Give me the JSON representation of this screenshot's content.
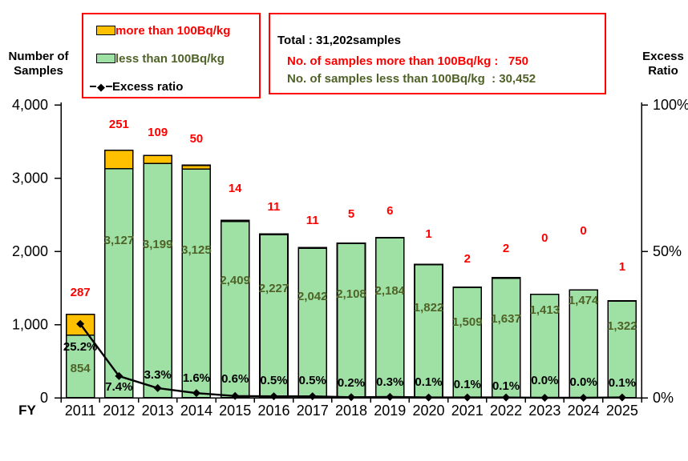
{
  "left_axis_title": {
    "line1": "Number of",
    "line2": "Samples"
  },
  "right_axis_title": {
    "line1": "Excess",
    "line2": "Ratio"
  },
  "fy_label": "FY",
  "legend": {
    "items": [
      {
        "label": "more than 100Bq/kg",
        "marker": "box",
        "swatch_color": "#FFC000",
        "text_color": "#FF0000"
      },
      {
        "label": "less than 100Bq/kg",
        "marker": "box",
        "swatch_color": "#9FE0A4",
        "text_color": "#4F6228"
      },
      {
        "label": "Excess ratio",
        "marker": "line-diamond",
        "text_color": "#000000"
      }
    ]
  },
  "summary_box": {
    "line1": "Total : 31,202samples",
    "line2": "No. of samples more than 100Bq/kg :   750",
    "line3": "No. of samples less than 100Bq/kg  : 30,452"
  },
  "colors": {
    "bar_more": "#FFC000",
    "bar_less": "#9FE0A4",
    "bar_border": "#000000",
    "line": "#000000",
    "label_more": "#FF0000",
    "label_less": "#4F6228",
    "label_ratio": "#000000",
    "box_border": "#FF0000",
    "axis": "#000000"
  },
  "chart_data": {
    "type": "combo: stacked bar + line",
    "title": "",
    "categories": [
      "2011",
      "2012",
      "2013",
      "2014",
      "2015",
      "2016",
      "2017",
      "2018",
      "2019",
      "2020",
      "2021",
      "2022",
      "2023",
      "2024",
      "2025"
    ],
    "series": [
      {
        "name": "more than 100Bq/kg",
        "type": "bar",
        "stacked": true,
        "color": "#FFC000",
        "axis": "left",
        "values": [
          287,
          251,
          109,
          50,
          14,
          11,
          11,
          5,
          6,
          1,
          2,
          2,
          0,
          0,
          1
        ],
        "labels": [
          "287",
          "251",
          "109",
          "50",
          "14",
          "11",
          "11",
          "5",
          "6",
          "1",
          "2",
          "2",
          "0",
          "0",
          "1"
        ]
      },
      {
        "name": "less than 100Bq/kg",
        "type": "bar",
        "stacked": true,
        "color": "#9FE0A4",
        "axis": "left",
        "values": [
          854,
          3127,
          3199,
          3125,
          2409,
          2227,
          2042,
          2108,
          2184,
          1822,
          1509,
          1637,
          1413,
          1474,
          1322
        ],
        "labels": [
          "854",
          "3,127",
          "3,199",
          "3,125",
          "2,409",
          "2,227",
          "2,042",
          "2,108",
          "2,184",
          "1,822",
          "1,509",
          "1,637",
          "1,413",
          "1,474",
          "1,322"
        ]
      },
      {
        "name": "Excess ratio",
        "type": "line",
        "color": "#000000",
        "axis": "right",
        "marker": "diamond",
        "values": [
          25.2,
          7.4,
          3.3,
          1.6,
          0.6,
          0.5,
          0.5,
          0.2,
          0.3,
          0.1,
          0.1,
          0.1,
          0.0,
          0.0,
          0.1
        ],
        "labels": [
          "25.2%",
          "7.4%",
          "3.3%",
          "1.6%",
          "0.6%",
          "0.5%",
          "0.5%",
          "0.2%",
          "0.3%",
          "0.1%",
          "0.1%",
          "0.1%",
          "0.0%",
          "0.0%",
          "0.1%"
        ]
      }
    ],
    "left_axis": {
      "title": "Number of Samples",
      "min": 0,
      "max": 4000,
      "tick_values": [
        4000,
        3000,
        2000,
        1000,
        0
      ],
      "tick_labels": [
        "4,000",
        "3,000",
        "2,000",
        "1,000",
        "0"
      ]
    },
    "right_axis": {
      "title": "Excess Ratio",
      "min": 0,
      "max": 100,
      "tick_values": [
        100,
        50,
        0
      ],
      "tick_labels": [
        "100%",
        "50%",
        "0%"
      ]
    },
    "x_label": "FY",
    "grid": false,
    "legend_position": "top-left",
    "layout_hints": {
      "red_label_y": [
        365,
        155,
        165,
        173,
        235,
        258,
        275,
        267,
        263,
        292,
        323,
        310,
        297,
        288,
        333
      ],
      "green_label_y": [
        460,
        300,
        305,
        312,
        350,
        360,
        370,
        367,
        363,
        384,
        402,
        398,
        387,
        375,
        407
      ],
      "pct_label_y": [
        433,
        483,
        468,
        472,
        473,
        475,
        475,
        478,
        477,
        477,
        480,
        482,
        475,
        477,
        478
      ]
    }
  }
}
